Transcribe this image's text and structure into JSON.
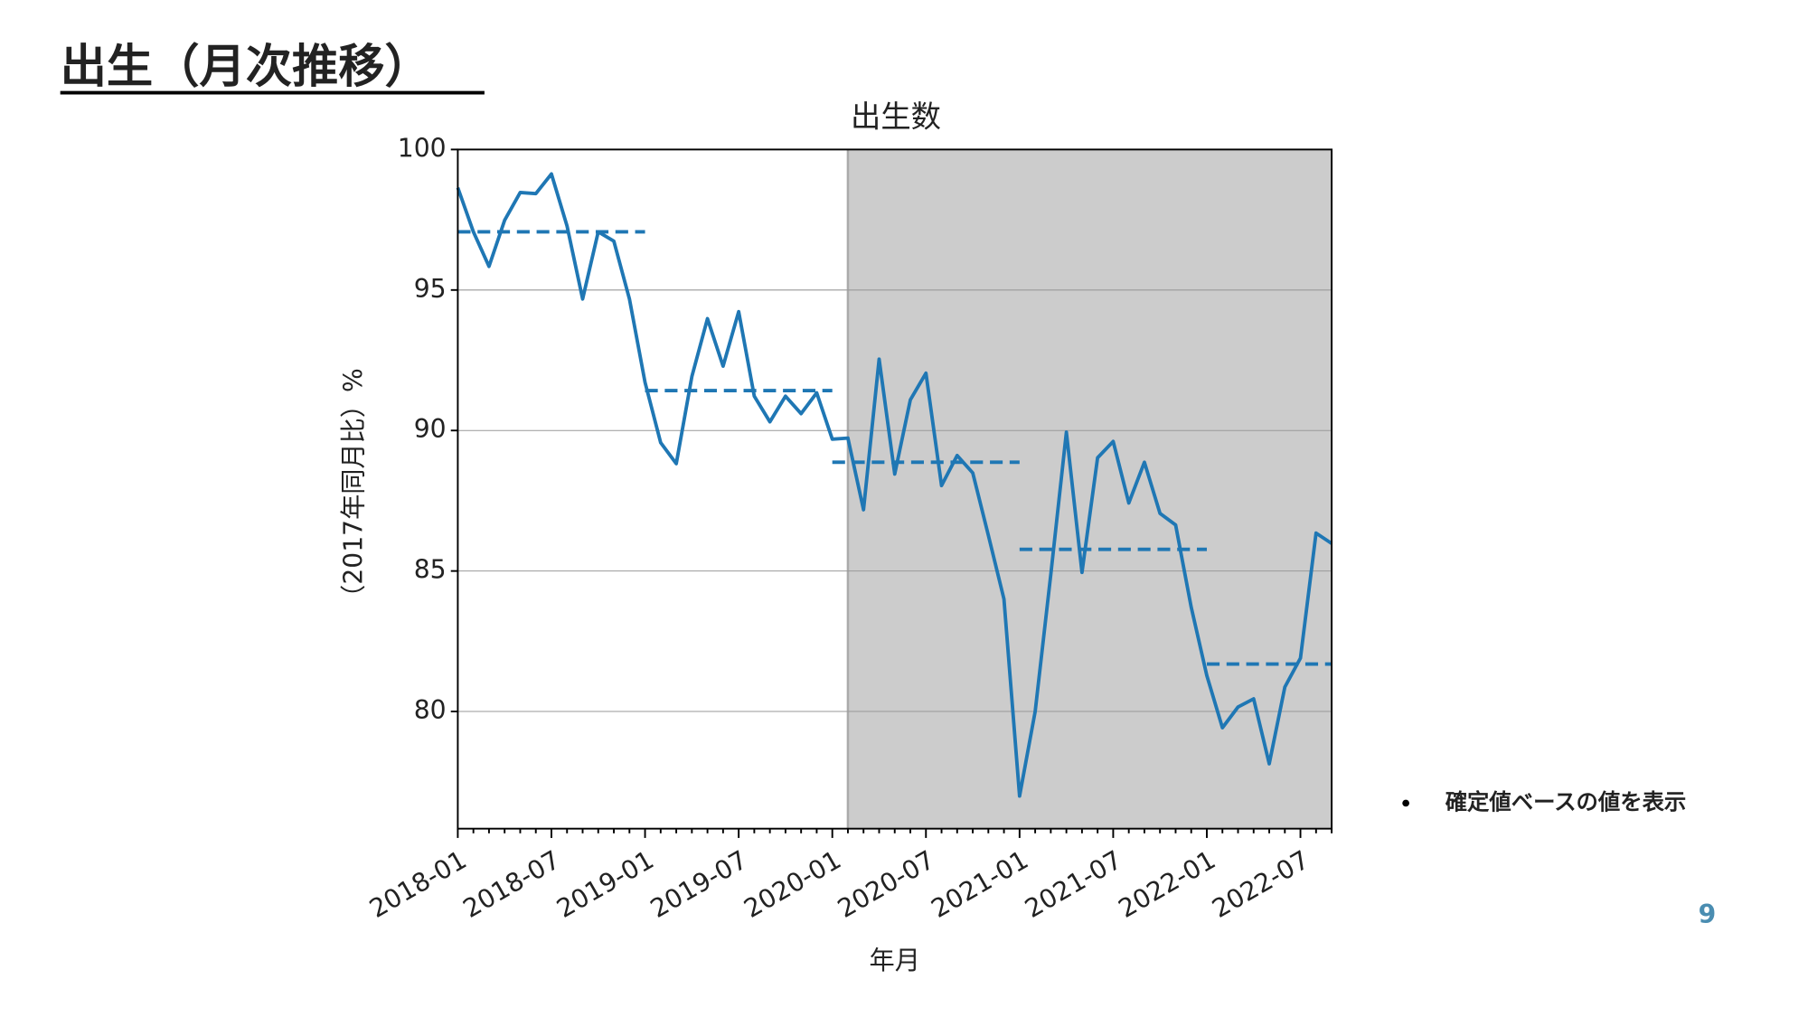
{
  "slide": {
    "title": "出生（月次推移）",
    "note": "確定値ベースの値を表示",
    "page_number": 9
  },
  "chart_data": {
    "type": "line",
    "title": "出生数",
    "x_label": "年月",
    "y_label": "（2017年同月比）%",
    "x": [
      "2018-01",
      "2018-02",
      "2018-03",
      "2018-04",
      "2018-05",
      "2018-06",
      "2018-07",
      "2018-08",
      "2018-09",
      "2018-10",
      "2018-11",
      "2018-12",
      "2019-01",
      "2019-02",
      "2019-03",
      "2019-04",
      "2019-05",
      "2019-06",
      "2019-07",
      "2019-08",
      "2019-09",
      "2019-10",
      "2019-11",
      "2019-12",
      "2020-01",
      "2020-02",
      "2020-03",
      "2020-04",
      "2020-05",
      "2020-06",
      "2020-07",
      "2020-08",
      "2020-09",
      "2020-10",
      "2020-11",
      "2020-12",
      "2021-01",
      "2021-02",
      "2021-03",
      "2021-04",
      "2021-05",
      "2021-06",
      "2021-07",
      "2021-08",
      "2021-09",
      "2021-10",
      "2021-11",
      "2021-12",
      "2022-01",
      "2022-02",
      "2022-03",
      "2022-04",
      "2022-05",
      "2022-06",
      "2022-07",
      "2022-08",
      "2022-09"
    ],
    "values": [
      98.64,
      97.07,
      95.84,
      97.48,
      98.47,
      98.43,
      99.13,
      97.28,
      94.68,
      97.07,
      96.74,
      94.68,
      91.71,
      89.57,
      88.82,
      91.92,
      93.98,
      92.29,
      94.23,
      91.22,
      90.31,
      91.22,
      90.6,
      91.34,
      89.69,
      89.73,
      87.18,
      92.54,
      88.45,
      91.09,
      92.04,
      88.04,
      89.11,
      88.49,
      86.27,
      84.0,
      76.99,
      80.0,
      84.87,
      89.94,
      84.95,
      89.03,
      89.61,
      87.42,
      88.87,
      87.05,
      86.64,
      83.71,
      81.28,
      79.42,
      80.16,
      80.45,
      78.14,
      80.87,
      81.9,
      86.35,
      85.98
    ],
    "color": "#1f77b4",
    "annual_averages": [
      {
        "start": "2018-01",
        "end": "2019-01",
        "value": 97.07
      },
      {
        "start": "2019-01",
        "end": "2020-01",
        "value": 91.42
      },
      {
        "start": "2020-01",
        "end": "2021-01",
        "value": 88.87
      },
      {
        "start": "2021-01",
        "end": "2022-01",
        "value": 85.77
      },
      {
        "start": "2022-01",
        "end": "2022-09",
        "value": 81.69
      }
    ],
    "shaded_from": "2020-02",
    "shade_color": "#cccccc",
    "ylim": [
      75.83,
      100
    ],
    "yticks": [
      80,
      85,
      90,
      95,
      100
    ],
    "grid": true
  }
}
